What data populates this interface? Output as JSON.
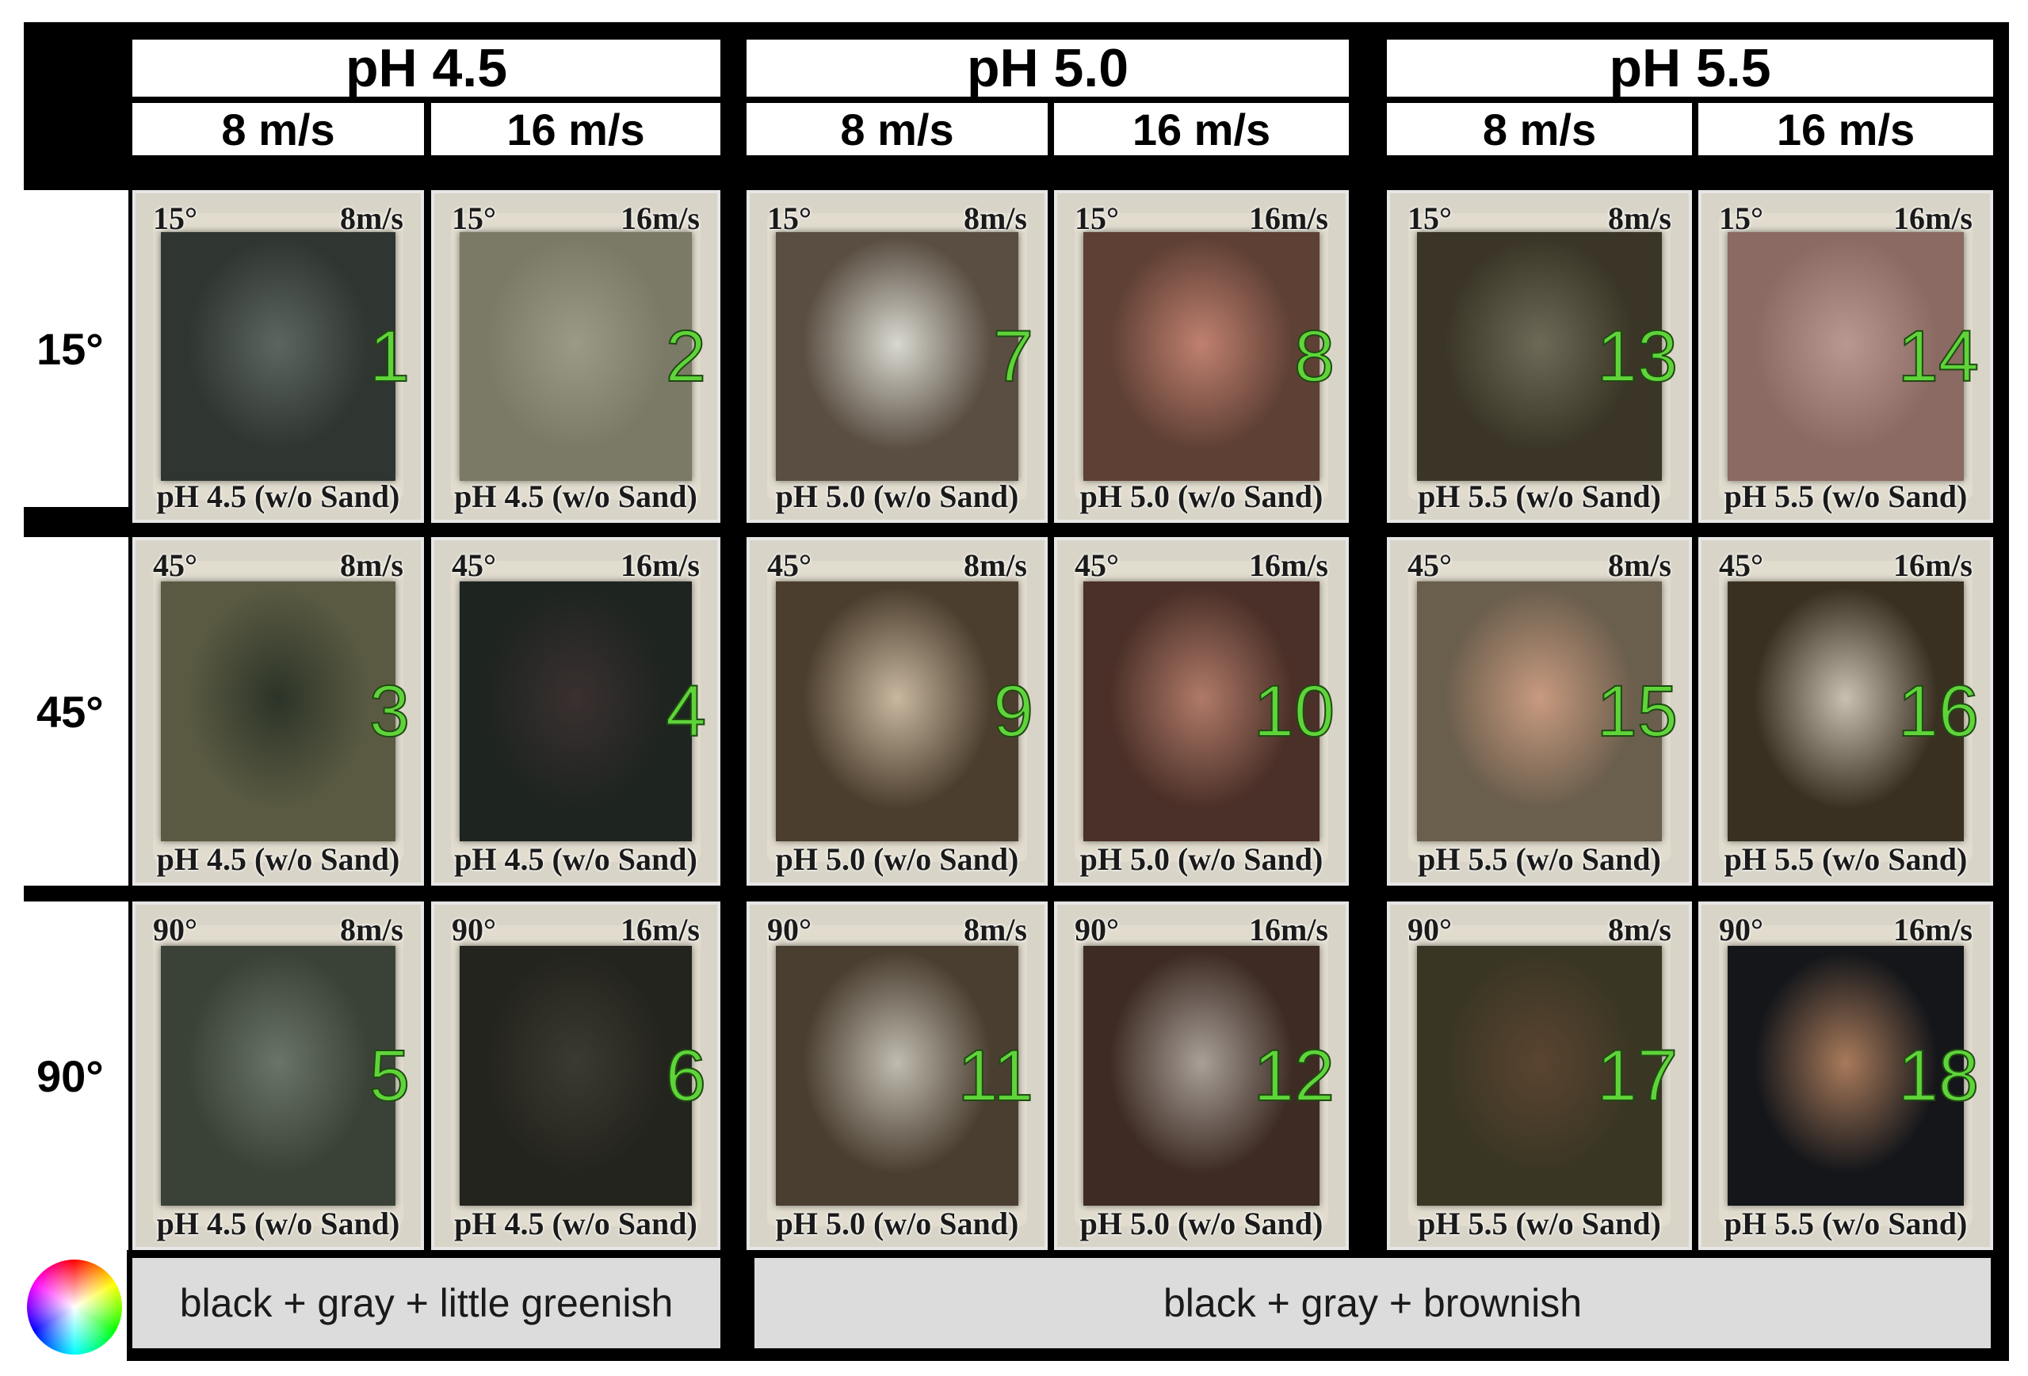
{
  "columns": [
    {
      "ph": "pH 4.5",
      "speeds": [
        "8 m/s",
        "16 m/s"
      ]
    },
    {
      "ph": "pH 5.0",
      "speeds": [
        "8 m/s",
        "16 m/s"
      ]
    },
    {
      "ph": "pH 5.5",
      "speeds": [
        "8 m/s",
        "16 m/s"
      ]
    }
  ],
  "rows": [
    "15°",
    "45°",
    "90°"
  ],
  "samples": [
    {
      "num": "1",
      "angle": "15°",
      "speed": "8m/s",
      "cond": "pH 4.5 (w/o Sand)",
      "color": "#2f3530",
      "accent": "#5c6660"
    },
    {
      "num": "2",
      "angle": "15°",
      "speed": "16m/s",
      "cond": "pH 4.5 (w/o Sand)",
      "color": "#7a7a66",
      "accent": "#9a9a86"
    },
    {
      "num": "7",
      "angle": "15°",
      "speed": "8m/s",
      "cond": "pH 5.0 (w/o Sand)",
      "color": "#5a4e42",
      "accent": "#d8d8d0"
    },
    {
      "num": "8",
      "angle": "15°",
      "speed": "16m/s",
      "cond": "pH 5.0 (w/o Sand)",
      "color": "#5e4034",
      "accent": "#c08070"
    },
    {
      "num": "13",
      "angle": "15°",
      "speed": "8m/s",
      "cond": "pH 5.5 (w/o Sand)",
      "color": "#3a3526",
      "accent": "#6e6a58"
    },
    {
      "num": "14",
      "angle": "15°",
      "speed": "16m/s",
      "cond": "pH 5.5 (w/o Sand)",
      "color": "#8a6a62",
      "accent": "#b89890"
    },
    {
      "num": "3",
      "angle": "45°",
      "speed": "8m/s",
      "cond": "pH 4.5 (w/o Sand)",
      "color": "#5a5a42",
      "accent": "#2c3428"
    },
    {
      "num": "4",
      "angle": "45°",
      "speed": "16m/s",
      "cond": "pH 4.5 (w/o Sand)",
      "color": "#1e2420",
      "accent": "#3a3030"
    },
    {
      "num": "9",
      "angle": "45°",
      "speed": "8m/s",
      "cond": "pH 5.0 (w/o Sand)",
      "color": "#4c3e2e",
      "accent": "#c8b8a0"
    },
    {
      "num": "10",
      "angle": "45°",
      "speed": "16m/s",
      "cond": "pH 5.0 (w/o Sand)",
      "color": "#4a3028",
      "accent": "#b07a68"
    },
    {
      "num": "15",
      "angle": "45°",
      "speed": "8m/s",
      "cond": "pH 5.5 (w/o Sand)",
      "color": "#6a5e4c",
      "accent": "#c89a80"
    },
    {
      "num": "16",
      "angle": "45°",
      "speed": "16m/s",
      "cond": "pH 5.5 (w/o Sand)",
      "color": "#3a3022",
      "accent": "#c8c0b0"
    },
    {
      "num": "5",
      "angle": "90°",
      "speed": "8m/s",
      "cond": "pH 4.5 (w/o Sand)",
      "color": "#3a4238",
      "accent": "#6a7468"
    },
    {
      "num": "6",
      "angle": "90°",
      "speed": "16m/s",
      "cond": "pH 4.5 (w/o Sand)",
      "color": "#24241e",
      "accent": "#3a3a30"
    },
    {
      "num": "11",
      "angle": "90°",
      "speed": "8m/s",
      "cond": "pH 5.0 (w/o Sand)",
      "color": "#4a3e30",
      "accent": "#c0bcb0"
    },
    {
      "num": "12",
      "angle": "90°",
      "speed": "16m/s",
      "cond": "pH 5.0 (w/o Sand)",
      "color": "#3e2c24",
      "accent": "#a8a098"
    },
    {
      "num": "17",
      "angle": "90°",
      "speed": "8m/s",
      "cond": "pH 5.5 (w/o Sand)",
      "color": "#3a3624",
      "accent": "#5a4430"
    },
    {
      "num": "18",
      "angle": "90°",
      "speed": "16m/s",
      "cond": "pH 5.5 (w/o Sand)",
      "color": "#14161a",
      "accent": "#a87a5a"
    }
  ],
  "descriptions": [
    "black + gray + little greenish",
    "black + gray + brownish"
  ]
}
